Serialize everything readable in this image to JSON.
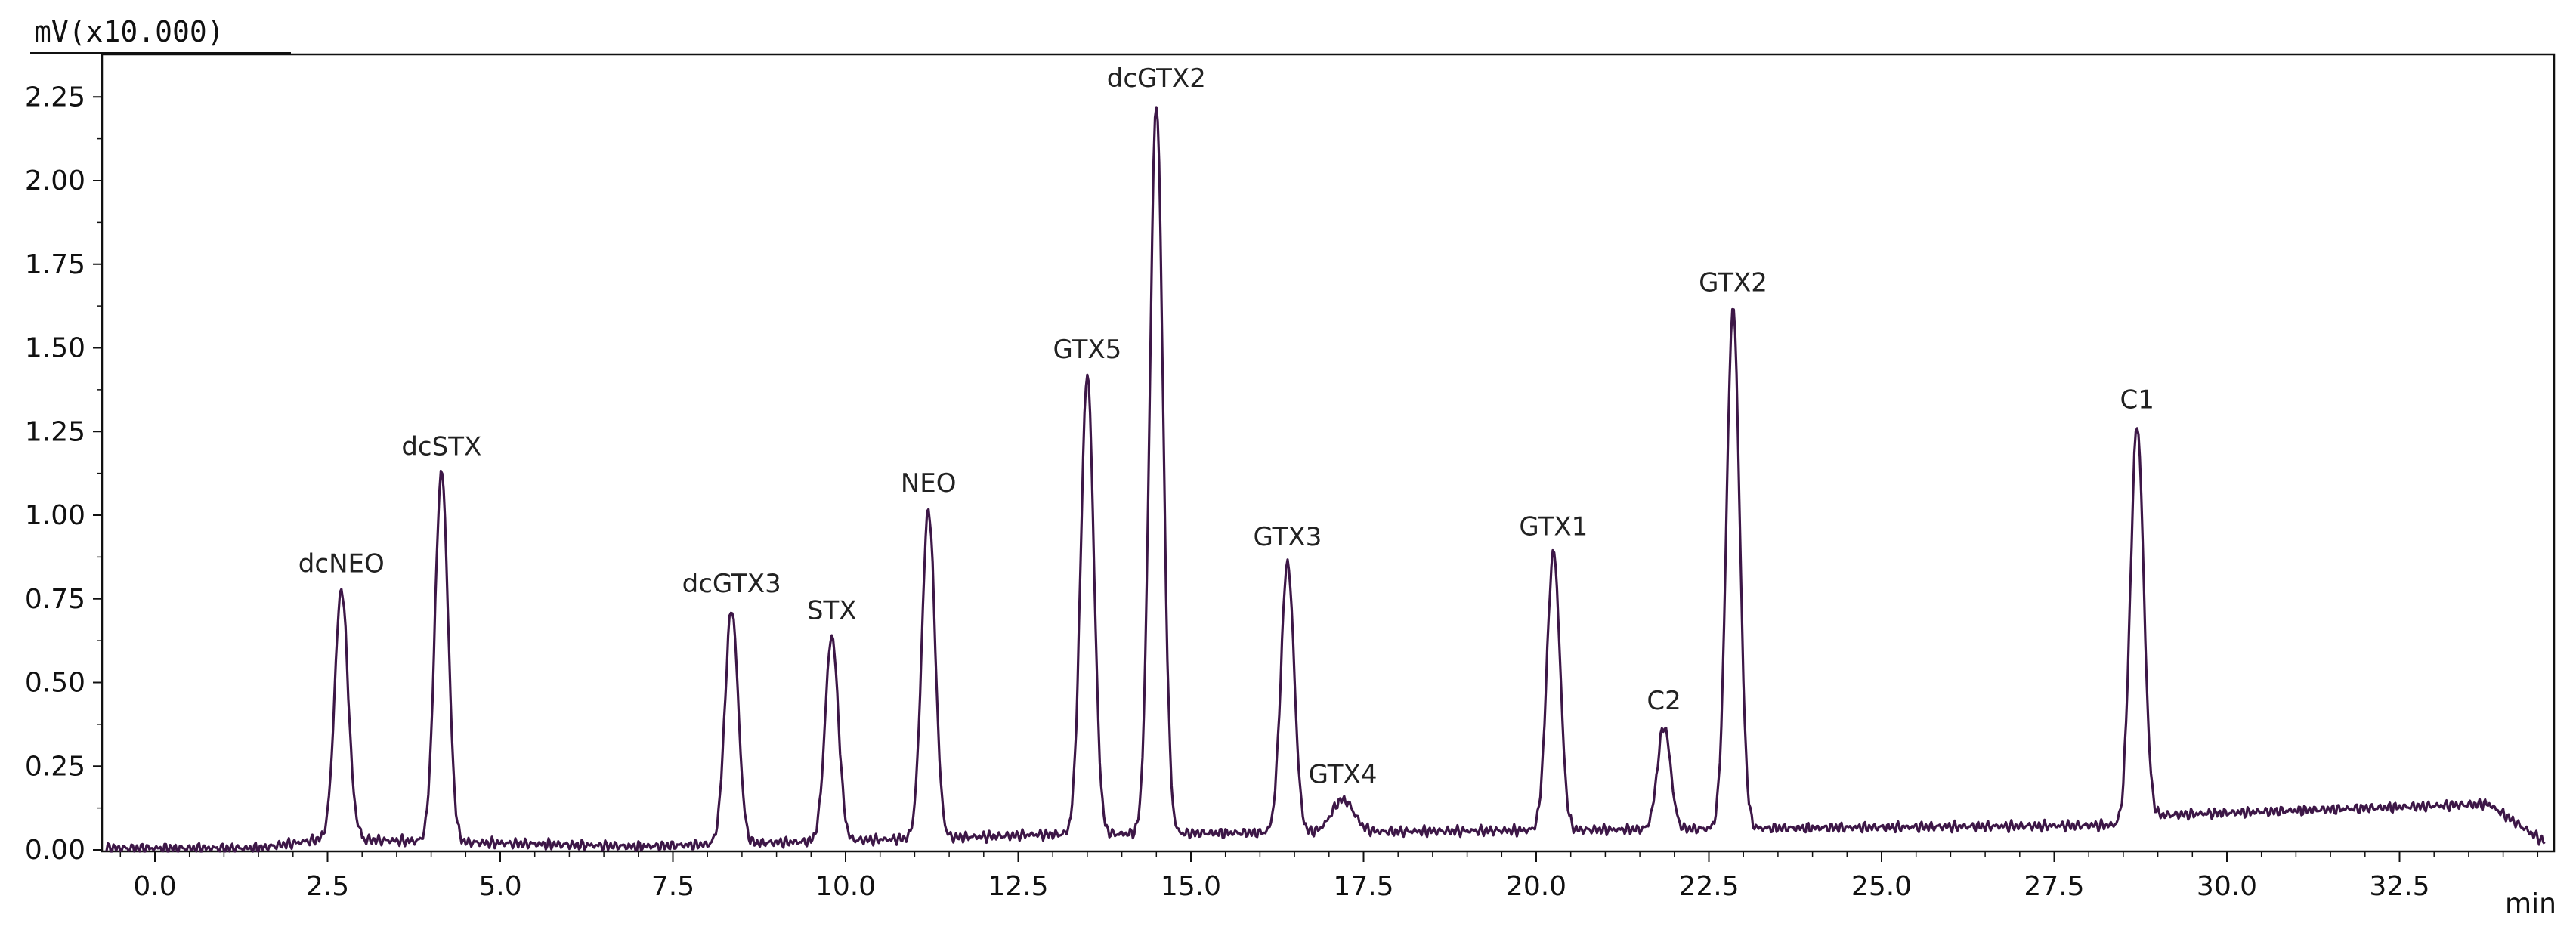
{
  "chart_data": {
    "type": "line",
    "ylabel": "mV(x10.000)",
    "xlabel": "min",
    "xlim": [
      -0.7,
      34.6
    ],
    "ylim": [
      0,
      2.4
    ],
    "xticks": [
      "0.0",
      "2.5",
      "5.0",
      "7.5",
      "10.0",
      "12.5",
      "15.0",
      "17.5",
      "20.0",
      "22.5",
      "25.0",
      "27.5",
      "30.0",
      "32.5"
    ],
    "yticks": [
      "0.00",
      "0.25",
      "0.50",
      "0.75",
      "1.00",
      "1.25",
      "1.50",
      "1.75",
      "2.00",
      "2.25"
    ],
    "line_color": "#3d1747",
    "grid": false,
    "peaks": [
      {
        "label": "dcNEO",
        "x": 2.7,
        "y": 0.78
      },
      {
        "label": "dcSTX",
        "x": 4.15,
        "y": 1.13
      },
      {
        "label": "dcGTX3",
        "x": 8.35,
        "y": 0.72
      },
      {
        "label": "STX",
        "x": 9.8,
        "y": 0.64
      },
      {
        "label": "NEO",
        "x": 11.2,
        "y": 1.02
      },
      {
        "label": "GTX5",
        "x": 13.5,
        "y": 1.42
      },
      {
        "label": "dcGTX2",
        "x": 14.5,
        "y": 2.23
      },
      {
        "label": "GTX3",
        "x": 16.4,
        "y": 0.86
      },
      {
        "label": "GTX4",
        "x": 17.2,
        "y": 0.15
      },
      {
        "label": "GTX1",
        "x": 20.25,
        "y": 0.89
      },
      {
        "label": "C2",
        "x": 21.85,
        "y": 0.37
      },
      {
        "label": "GTX2",
        "x": 22.85,
        "y": 1.62
      },
      {
        "label": "C1",
        "x": 28.7,
        "y": 1.27
      }
    ]
  }
}
